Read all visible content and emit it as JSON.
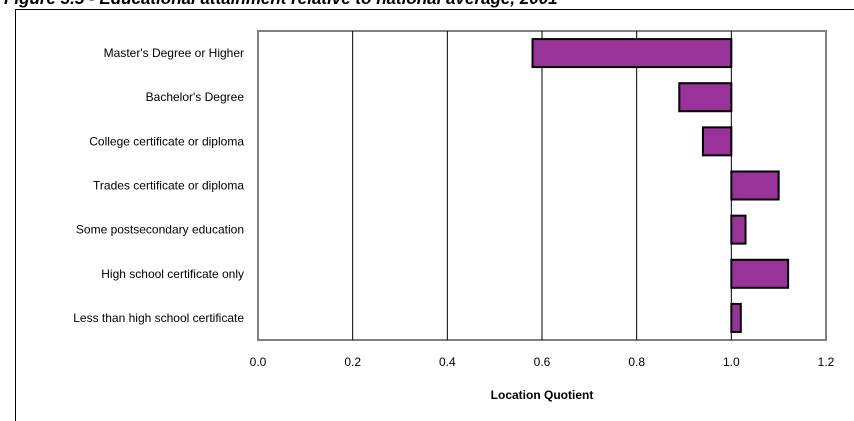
{
  "title": "Figure 3.5 - Educational attainment relative to national average, 2001",
  "chart_data": {
    "type": "bar",
    "orientation": "horizontal",
    "categories": [
      "Master's Degree or Higher",
      "Bachelor's Degree",
      "College certificate or diploma",
      "Trades certificate or diploma",
      "Some postsecondary education",
      "High school certificate only",
      "Less than high school certificate"
    ],
    "values": [
      0.58,
      0.89,
      0.94,
      1.1,
      1.03,
      1.12,
      1.02
    ],
    "baseline": 1.0,
    "xlabel": "Location Quotient",
    "ylabel": "",
    "xlim": [
      0.0,
      1.2
    ],
    "xticks": [
      "0.0",
      "0.2",
      "0.4",
      "0.6",
      "0.8",
      "1.0",
      "1.2"
    ],
    "grid": "vertical",
    "legend": "none",
    "bar_color": "#993399",
    "bar_stroke": "#000000"
  }
}
